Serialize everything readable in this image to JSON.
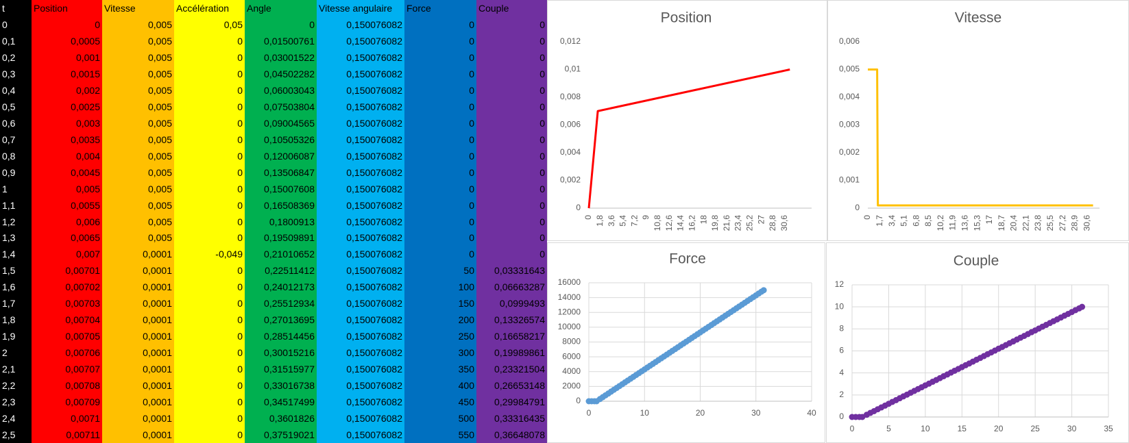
{
  "table": {
    "columns": [
      "t",
      "Position",
      "Vitesse",
      "Accélération",
      "Angle",
      "Vitesse angulaire",
      "Force",
      "Couple"
    ],
    "column_colors": [
      "#000000",
      "#FF0000",
      "#FFC000",
      "#FFFF00",
      "#00B050",
      "#00B0F0",
      "#0070C0",
      "#7030A0"
    ],
    "rows": [
      [
        "0",
        "0",
        "0,005",
        "0,05",
        "0",
        "0,150076082",
        "0",
        "0"
      ],
      [
        "0,1",
        "0,0005",
        "0,005",
        "0",
        "0,01500761",
        "0,150076082",
        "0",
        "0"
      ],
      [
        "0,2",
        "0,001",
        "0,005",
        "0",
        "0,03001522",
        "0,150076082",
        "0",
        "0"
      ],
      [
        "0,3",
        "0,0015",
        "0,005",
        "0",
        "0,04502282",
        "0,150076082",
        "0",
        "0"
      ],
      [
        "0,4",
        "0,002",
        "0,005",
        "0",
        "0,06003043",
        "0,150076082",
        "0",
        "0"
      ],
      [
        "0,5",
        "0,0025",
        "0,005",
        "0",
        "0,07503804",
        "0,150076082",
        "0",
        "0"
      ],
      [
        "0,6",
        "0,003",
        "0,005",
        "0",
        "0,09004565",
        "0,150076082",
        "0",
        "0"
      ],
      [
        "0,7",
        "0,0035",
        "0,005",
        "0",
        "0,10505326",
        "0,150076082",
        "0",
        "0"
      ],
      [
        "0,8",
        "0,004",
        "0,005",
        "0",
        "0,12006087",
        "0,150076082",
        "0",
        "0"
      ],
      [
        "0,9",
        "0,0045",
        "0,005",
        "0",
        "0,13506847",
        "0,150076082",
        "0",
        "0"
      ],
      [
        "1",
        "0,005",
        "0,005",
        "0",
        "0,15007608",
        "0,150076082",
        "0",
        "0"
      ],
      [
        "1,1",
        "0,0055",
        "0,005",
        "0",
        "0,16508369",
        "0,150076082",
        "0",
        "0"
      ],
      [
        "1,2",
        "0,006",
        "0,005",
        "0",
        "0,1800913",
        "0,150076082",
        "0",
        "0"
      ],
      [
        "1,3",
        "0,0065",
        "0,005",
        "0",
        "0,19509891",
        "0,150076082",
        "0",
        "0"
      ],
      [
        "1,4",
        "0,007",
        "0,0001",
        "-0,049",
        "0,21010652",
        "0,150076082",
        "0",
        "0"
      ],
      [
        "1,5",
        "0,00701",
        "0,0001",
        "0",
        "0,22511412",
        "0,150076082",
        "50",
        "0,03331643"
      ],
      [
        "1,6",
        "0,00702",
        "0,0001",
        "0",
        "0,24012173",
        "0,150076082",
        "100",
        "0,06663287"
      ],
      [
        "1,7",
        "0,00703",
        "0,0001",
        "0",
        "0,25512934",
        "0,150076082",
        "150",
        "0,0999493"
      ],
      [
        "1,8",
        "0,00704",
        "0,0001",
        "0",
        "0,27013695",
        "0,150076082",
        "200",
        "0,13326574"
      ],
      [
        "1,9",
        "0,00705",
        "0,0001",
        "0",
        "0,28514456",
        "0,150076082",
        "250",
        "0,16658217"
      ],
      [
        "2",
        "0,00706",
        "0,0001",
        "0",
        "0,30015216",
        "0,150076082",
        "300",
        "0,19989861"
      ],
      [
        "2,1",
        "0,00707",
        "0,0001",
        "0",
        "0,31515977",
        "0,150076082",
        "350",
        "0,23321504"
      ],
      [
        "2,2",
        "0,00708",
        "0,0001",
        "0",
        "0,33016738",
        "0,150076082",
        "400",
        "0,26653148"
      ],
      [
        "2,3",
        "0,00709",
        "0,0001",
        "0",
        "0,34517499",
        "0,150076082",
        "450",
        "0,29984791"
      ],
      [
        "2,4",
        "0,0071",
        "0,0001",
        "0",
        "0,3601826",
        "0,150076082",
        "500",
        "0,33316435"
      ],
      [
        "2,5",
        "0,00711",
        "0,0001",
        "0",
        "0,37519021",
        "0,150076082",
        "550",
        "0,36648078"
      ]
    ]
  },
  "chart_data": [
    {
      "type": "line",
      "title": "Position",
      "x": [
        0,
        1.4,
        31.4
      ],
      "values": [
        0,
        0.007,
        0.01
      ],
      "color": "#FF0000",
      "grid": false,
      "xlim": [
        0,
        34.8
      ],
      "xticks": [
        0,
        {
          "value": 1.8,
          "label": "1,8"
        },
        {
          "value": 3.6,
          "label": "3,6"
        },
        {
          "value": 5.4,
          "label": "5,4"
        },
        {
          "value": 7.2,
          "label": "7,2"
        },
        9,
        {
          "value": 10.8,
          "label": "10,8"
        },
        {
          "value": 12.6,
          "label": "12,6"
        },
        {
          "value": 14.4,
          "label": "14,4"
        },
        {
          "value": 16.2,
          "label": "16,2"
        },
        18,
        {
          "value": 19.8,
          "label": "19,8"
        },
        {
          "value": 21.6,
          "label": "21,6"
        },
        {
          "value": 23.4,
          "label": "23,4"
        },
        {
          "value": 25.2,
          "label": "25,2"
        },
        27,
        {
          "value": 28.8,
          "label": "28,8"
        },
        {
          "value": 30.6,
          "label": "30,6"
        }
      ],
      "ylim": [
        0,
        0.012
      ],
      "yticks": [
        0,
        {
          "value": 0.002,
          "label": "0,002"
        },
        {
          "value": 0.004,
          "label": "0,004"
        },
        {
          "value": 0.006,
          "label": "0,006"
        },
        {
          "value": 0.008,
          "label": "0,008"
        },
        {
          "value": 0.01,
          "label": "0,01"
        },
        {
          "value": 0.012,
          "label": "0,012"
        }
      ]
    },
    {
      "type": "line",
      "title": "Vitesse",
      "x": [
        0,
        1.3,
        1.4,
        31.4
      ],
      "values": [
        0.005,
        0.005,
        0.0001,
        0.0001
      ],
      "color": "#FFC000",
      "grid": false,
      "xlim": [
        0,
        32.3
      ],
      "xticks": [
        0,
        {
          "value": 1.7,
          "label": "1,7"
        },
        {
          "value": 3.4,
          "label": "3,4"
        },
        {
          "value": 5.1,
          "label": "5,1"
        },
        {
          "value": 6.8,
          "label": "6,8"
        },
        {
          "value": 8.5,
          "label": "8,5"
        },
        {
          "value": 10.2,
          "label": "10,2"
        },
        {
          "value": 11.9,
          "label": "11,9"
        },
        {
          "value": 13.6,
          "label": "13,6"
        },
        {
          "value": 15.3,
          "label": "15,3"
        },
        17,
        {
          "value": 18.7,
          "label": "18,7"
        },
        {
          "value": 20.4,
          "label": "20,4"
        },
        {
          "value": 22.1,
          "label": "22,1"
        },
        {
          "value": 23.8,
          "label": "23,8"
        },
        {
          "value": 25.5,
          "label": "25,5"
        },
        {
          "value": 27.2,
          "label": "27,2"
        },
        {
          "value": 28.9,
          "label": "28,9"
        },
        {
          "value": 30.6,
          "label": "30,6"
        }
      ],
      "ylim": [
        0,
        0.006
      ],
      "yticks": [
        0,
        {
          "value": 0.001,
          "label": "0,001"
        },
        {
          "value": 0.002,
          "label": "0,002"
        },
        {
          "value": 0.003,
          "label": "0,003"
        },
        {
          "value": 0.004,
          "label": "0,004"
        },
        {
          "value": 0.005,
          "label": "0,005"
        },
        {
          "value": 0.006,
          "label": "0,006"
        }
      ]
    },
    {
      "type": "scatter",
      "title": "Force",
      "color": "#5B9BD5",
      "grid": true,
      "x": [
        0,
        0.5,
        1,
        1.4,
        2,
        2.5,
        3,
        3.5,
        4,
        4.5,
        5,
        5.5,
        6,
        6.5,
        7,
        7.5,
        8,
        8.5,
        9,
        9.5,
        10,
        10.5,
        11,
        11.5,
        12,
        12.5,
        13,
        13.5,
        14,
        14.5,
        15,
        15.5,
        16,
        16.5,
        17,
        17.5,
        18,
        18.5,
        19,
        19.5,
        20,
        20.5,
        21,
        21.5,
        22,
        22.5,
        23,
        23.5,
        24,
        24.5,
        25,
        25.5,
        26,
        26.5,
        27,
        27.5,
        28,
        28.5,
        29,
        29.5,
        30,
        30.5,
        31,
        31.4
      ],
      "values": [
        0,
        0,
        0,
        0,
        300,
        550,
        800,
        1050,
        1300,
        1550,
        1800,
        2050,
        2300,
        2550,
        2800,
        3050,
        3300,
        3550,
        3800,
        4050,
        4300,
        4550,
        4800,
        5050,
        5300,
        5550,
        5800,
        6050,
        6300,
        6550,
        6800,
        7050,
        7300,
        7550,
        7800,
        8050,
        8300,
        8550,
        8800,
        9050,
        9300,
        9550,
        9800,
        10050,
        10300,
        10550,
        10800,
        11050,
        11300,
        11550,
        11800,
        12050,
        12300,
        12550,
        12800,
        13050,
        13300,
        13550,
        13800,
        14050,
        14300,
        14550,
        14800,
        15000
      ],
      "xlim": [
        0,
        40
      ],
      "xticks": [
        0,
        10,
        20,
        30,
        40
      ],
      "ylim": [
        0,
        16000
      ],
      "yticks": [
        0,
        2000,
        4000,
        6000,
        8000,
        10000,
        12000,
        14000,
        16000
      ]
    },
    {
      "type": "scatter",
      "title": "Couple",
      "color": "#7030A0",
      "grid": true,
      "x": [
        0,
        0.5,
        1,
        1.4,
        2,
        2.5,
        3,
        3.5,
        4,
        4.5,
        5,
        5.5,
        6,
        6.5,
        7,
        7.5,
        8,
        8.5,
        9,
        9.5,
        10,
        10.5,
        11,
        11.5,
        12,
        12.5,
        13,
        13.5,
        14,
        14.5,
        15,
        15.5,
        16,
        16.5,
        17,
        17.5,
        18,
        18.5,
        19,
        19.5,
        20,
        20.5,
        21,
        21.5,
        22,
        22.5,
        23,
        23.5,
        24,
        24.5,
        25,
        25.5,
        26,
        26.5,
        27,
        27.5,
        28,
        28.5,
        29,
        29.5,
        30,
        30.5,
        31,
        31.4
      ],
      "values": [
        0,
        0,
        0,
        0,
        0.2,
        0.37,
        0.53,
        0.7,
        0.87,
        1.03,
        1.2,
        1.37,
        1.53,
        1.7,
        1.87,
        2.03,
        2.2,
        2.37,
        2.53,
        2.7,
        2.87,
        3.03,
        3.2,
        3.36,
        3.53,
        3.7,
        3.86,
        4.03,
        4.2,
        4.36,
        4.53,
        4.7,
        4.86,
        5.03,
        5.2,
        5.36,
        5.53,
        5.7,
        5.86,
        6.03,
        6.2,
        6.36,
        6.53,
        6.7,
        6.86,
        7.03,
        7.2,
        7.36,
        7.53,
        7.7,
        7.86,
        8.03,
        8.2,
        8.36,
        8.53,
        8.7,
        8.86,
        9.03,
        9.2,
        9.36,
        9.53,
        9.7,
        9.86,
        10
      ],
      "xlim": [
        0,
        35
      ],
      "xticks": [
        0,
        5,
        10,
        15,
        20,
        25,
        30,
        35
      ],
      "ylim": [
        0,
        12
      ],
      "yticks": [
        0,
        2,
        4,
        6,
        8,
        10,
        12
      ]
    }
  ]
}
